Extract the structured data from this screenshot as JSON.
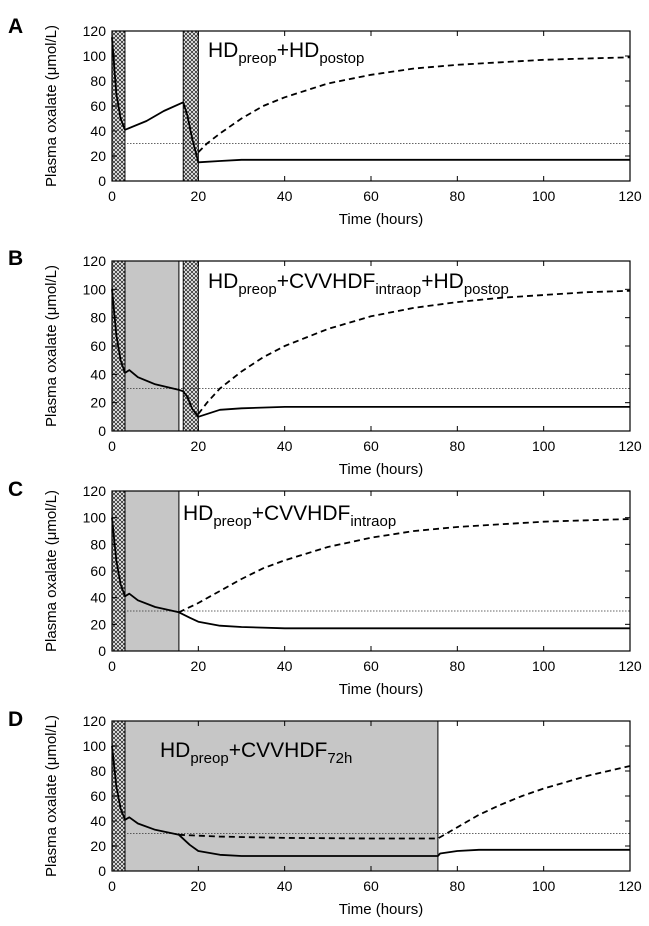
{
  "chart_data": [
    {
      "panel_label": "A",
      "type": "line",
      "xlabel": "Time (hours)",
      "ylabel": "Plasma oxalate (μmol/L)",
      "xlim": [
        0,
        120
      ],
      "ylim": [
        0,
        120
      ],
      "x_ticks": [
        "0",
        "20",
        "40",
        "60",
        "80",
        "100",
        "120"
      ],
      "y_ticks": [
        "0",
        "20",
        "40",
        "60",
        "80",
        "100",
        "120"
      ],
      "annotation": {
        "main1": "HD",
        "sub1": "preop",
        "main2": "+HD",
        "sub2": "postop",
        "main3": "",
        "sub3": ""
      },
      "hatched_regions": [
        [
          0,
          3
        ],
        [
          16.5,
          20
        ]
      ],
      "gray_regions": [],
      "reference_line": 30,
      "series": [
        {
          "style": "dashed",
          "x": [
            20,
            22,
            25,
            30,
            35,
            40,
            50,
            60,
            70,
            80,
            90,
            100,
            110,
            120
          ],
          "y": [
            23,
            30,
            38,
            50,
            60,
            67,
            78,
            85,
            90,
            93,
            95,
            97,
            98,
            99
          ]
        },
        {
          "style": "solid",
          "x": [
            0,
            1,
            2,
            3,
            8,
            12,
            16.5,
            17.5,
            18.5,
            20,
            25,
            30,
            40,
            60,
            80,
            100,
            120
          ],
          "y": [
            115,
            70,
            50,
            41,
            48,
            56,
            63,
            52,
            35,
            15,
            16,
            17,
            17,
            17,
            17,
            17,
            17
          ]
        }
      ]
    },
    {
      "panel_label": "B",
      "type": "line",
      "xlabel": "Time (hours)",
      "ylabel": "Plasma oxalate (μmol/L)",
      "xlim": [
        0,
        120
      ],
      "ylim": [
        0,
        120
      ],
      "x_ticks": [
        "0",
        "20",
        "40",
        "60",
        "80",
        "100",
        "120"
      ],
      "y_ticks": [
        "0",
        "20",
        "40",
        "60",
        "80",
        "100",
        "120"
      ],
      "annotation": {
        "main1": "HD",
        "sub1": "preop",
        "main2": "+CVVHDF",
        "sub2": "intraop",
        "main3": "+HD",
        "sub3": "postop"
      },
      "hatched_regions": [
        [
          0,
          3
        ],
        [
          16.5,
          20
        ]
      ],
      "gray_regions": [
        [
          3,
          15.5
        ]
      ],
      "reference_line": 30,
      "series": [
        {
          "style": "dashed",
          "x": [
            20,
            22,
            25,
            30,
            35,
            40,
            50,
            60,
            70,
            80,
            90,
            100,
            110,
            120
          ],
          "y": [
            12,
            20,
            30,
            42,
            52,
            60,
            72,
            81,
            87,
            91,
            94,
            96,
            98,
            99
          ]
        },
        {
          "style": "solid",
          "x": [
            0,
            1,
            2,
            3,
            4,
            6,
            10,
            15.5,
            16.5,
            17.5,
            18.5,
            20,
            25,
            30,
            40,
            60,
            80,
            100,
            120
          ],
          "y": [
            100,
            68,
            50,
            41,
            43,
            38,
            33,
            29,
            28,
            24,
            16,
            10,
            15,
            16,
            17,
            17,
            17,
            17,
            17
          ]
        }
      ]
    },
    {
      "panel_label": "C",
      "type": "line",
      "xlabel": "Time (hours)",
      "ylabel": "Plasma oxalate (μmol/L)",
      "xlim": [
        0,
        120
      ],
      "ylim": [
        0,
        120
      ],
      "x_ticks": [
        "0",
        "20",
        "40",
        "60",
        "80",
        "100",
        "120"
      ],
      "y_ticks": [
        "0",
        "20",
        "40",
        "60",
        "80",
        "100",
        "120"
      ],
      "annotation": {
        "main1": "HD",
        "sub1": "preop",
        "main2": "+CVVHDF",
        "sub2": "intraop",
        "main3": "",
        "sub3": ""
      },
      "hatched_regions": [
        [
          0,
          3
        ]
      ],
      "gray_regions": [
        [
          3,
          15.5
        ]
      ],
      "reference_line": 30,
      "series": [
        {
          "style": "dashed",
          "x": [
            15.5,
            20,
            25,
            30,
            35,
            40,
            50,
            60,
            70,
            80,
            90,
            100,
            110,
            120
          ],
          "y": [
            29,
            36,
            45,
            54,
            62,
            68,
            78,
            85,
            90,
            93,
            95,
            97,
            98,
            99
          ]
        },
        {
          "style": "solid",
          "x": [
            0,
            1,
            2,
            3,
            4,
            6,
            10,
            15.5,
            18,
            20,
            25,
            30,
            40,
            60,
            80,
            100,
            120
          ],
          "y": [
            100,
            68,
            50,
            41,
            43,
            38,
            33,
            29,
            25,
            22,
            19,
            18,
            17,
            17,
            17,
            17,
            17
          ]
        }
      ]
    },
    {
      "panel_label": "D",
      "type": "line",
      "xlabel": "Time (hours)",
      "ylabel": "Plasma oxalate (μmol/L)",
      "xlim": [
        0,
        120
      ],
      "ylim": [
        0,
        120
      ],
      "x_ticks": [
        "0",
        "20",
        "40",
        "60",
        "80",
        "100",
        "120"
      ],
      "y_ticks": [
        "0",
        "20",
        "40",
        "60",
        "80",
        "100",
        "120"
      ],
      "annotation": {
        "main1": "HD",
        "sub1": "preop",
        "main2": "+CVVHDF",
        "sub2": "72h",
        "main3": "",
        "sub3": ""
      },
      "hatched_regions": [
        [
          0,
          3
        ]
      ],
      "gray_regions": [
        [
          3,
          75.5
        ]
      ],
      "reference_line": 30,
      "series": [
        {
          "style": "dashed",
          "x": [
            15.5,
            25,
            40,
            60,
            75.5,
            80,
            85,
            90,
            95,
            100,
            105,
            110,
            115,
            120
          ],
          "y": [
            29,
            27.5,
            26.5,
            26,
            26,
            35,
            45,
            53,
            60,
            66,
            71,
            76,
            80,
            84
          ]
        },
        {
          "style": "solid",
          "x": [
            0,
            1,
            2,
            3,
            4,
            6,
            10,
            15.5,
            18,
            20,
            25,
            30,
            40,
            60,
            75.5,
            76,
            80,
            85,
            90,
            100,
            120
          ],
          "y": [
            100,
            68,
            50,
            41,
            43,
            38,
            33,
            29,
            21,
            16,
            13,
            12,
            12,
            12,
            12,
            14,
            16,
            17,
            17,
            17,
            17
          ]
        }
      ]
    }
  ]
}
